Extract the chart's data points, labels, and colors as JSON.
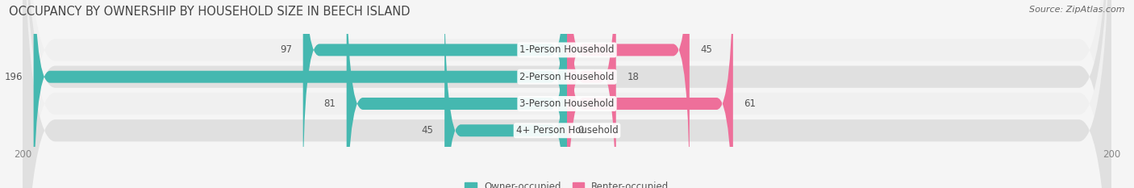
{
  "title": "OCCUPANCY BY OWNERSHIP BY HOUSEHOLD SIZE IN BEECH ISLAND",
  "source": "Source: ZipAtlas.com",
  "categories": [
    "1-Person Household",
    "2-Person Household",
    "3-Person Household",
    "4+ Person Household"
  ],
  "owner_values": [
    97,
    196,
    81,
    45
  ],
  "renter_values": [
    45,
    18,
    61,
    0
  ],
  "owner_color": "#45B8B0",
  "renter_color": "#EE6F9A",
  "owner_color_light": "#72CEC8",
  "renter_color_light": "#F0A0BE",
  "bg_color": "#f5f5f5",
  "row_colors": [
    "#f0f0f0",
    "#e0e0e0",
    "#f0f0f0",
    "#e0e0e0"
  ],
  "xlim": 200,
  "title_fontsize": 10.5,
  "source_fontsize": 8,
  "label_fontsize": 8.5,
  "value_fontsize": 8.5,
  "tick_fontsize": 8.5,
  "legend_fontsize": 8.5
}
